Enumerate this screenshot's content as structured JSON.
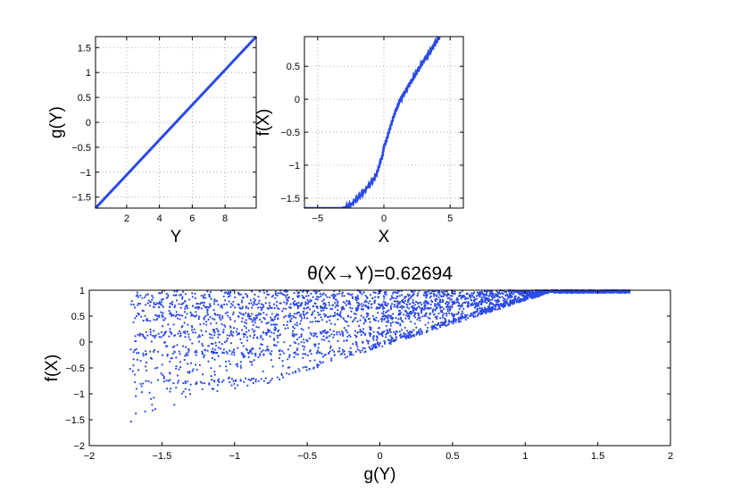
{
  "chart_data": [
    {
      "id": "p1",
      "type": "line",
      "xlabel": "Y",
      "ylabel": "g(Y)",
      "xlim": [
        0.1,
        9.9
      ],
      "ylim": [
        -1.72,
        1.72
      ],
      "xticks": [
        2,
        4,
        6,
        8
      ],
      "yticks": [
        -1.5,
        -1,
        -0.5,
        0,
        0.5,
        1,
        1.5
      ],
      "grid": true,
      "color": "#2b4ae6",
      "series": [
        {
          "x": [
            0.1,
            9.9
          ],
          "y": [
            -1.72,
            1.72
          ]
        }
      ]
    },
    {
      "id": "p2",
      "type": "line",
      "xlabel": "X",
      "ylabel": "f(X)",
      "xlim": [
        -6,
        6
      ],
      "ylim": [
        -1.65,
        0.95
      ],
      "xticks": [
        -5,
        0,
        5
      ],
      "yticks": [
        -1.5,
        -1,
        -0.5,
        0,
        0.5
      ],
      "grid": true,
      "color": "#2b4ae6",
      "series": [
        {
          "x": [
            -6,
            -3.2,
            -2.8,
            -2.4,
            -2.0,
            -1.6,
            -1.2,
            -0.8,
            -0.5,
            -0.3,
            -0.1,
            0.0,
            0.2,
            0.4,
            0.6,
            0.8,
            1.0,
            1.2,
            1.5,
            1.8,
            2.1,
            2.4,
            2.7,
            3.0,
            3.3,
            3.6,
            3.9,
            4.2
          ],
          "y": [
            -1.65,
            -1.65,
            -1.63,
            -1.58,
            -1.5,
            -1.42,
            -1.33,
            -1.22,
            -1.1,
            -0.97,
            -0.85,
            -0.72,
            -0.62,
            -0.48,
            -0.35,
            -0.22,
            -0.12,
            -0.02,
            0.08,
            0.18,
            0.28,
            0.38,
            0.48,
            0.58,
            0.66,
            0.75,
            0.85,
            0.95
          ]
        }
      ]
    },
    {
      "id": "p3",
      "type": "scatter",
      "title": "θ(X→Y)=0.62694",
      "xlabel": "g(Y)",
      "ylabel": "f(X)",
      "xlim": [
        -2,
        2
      ],
      "ylim": [
        -2,
        1
      ],
      "xticks": [
        -2,
        -1.5,
        -1,
        -0.5,
        0,
        0.5,
        1,
        1.5,
        2
      ],
      "yticks": [
        -2,
        -1.5,
        -1,
        -0.5,
        0,
        0.5,
        1
      ],
      "grid": false,
      "color": "#2b4ae6",
      "point_count": 3500,
      "x_range": [
        -1.72,
        1.72
      ],
      "y_range": [
        -1.65,
        1.0
      ],
      "bands": [
        -0.75,
        -0.2,
        0.15,
        0.5,
        0.7
      ]
    }
  ]
}
